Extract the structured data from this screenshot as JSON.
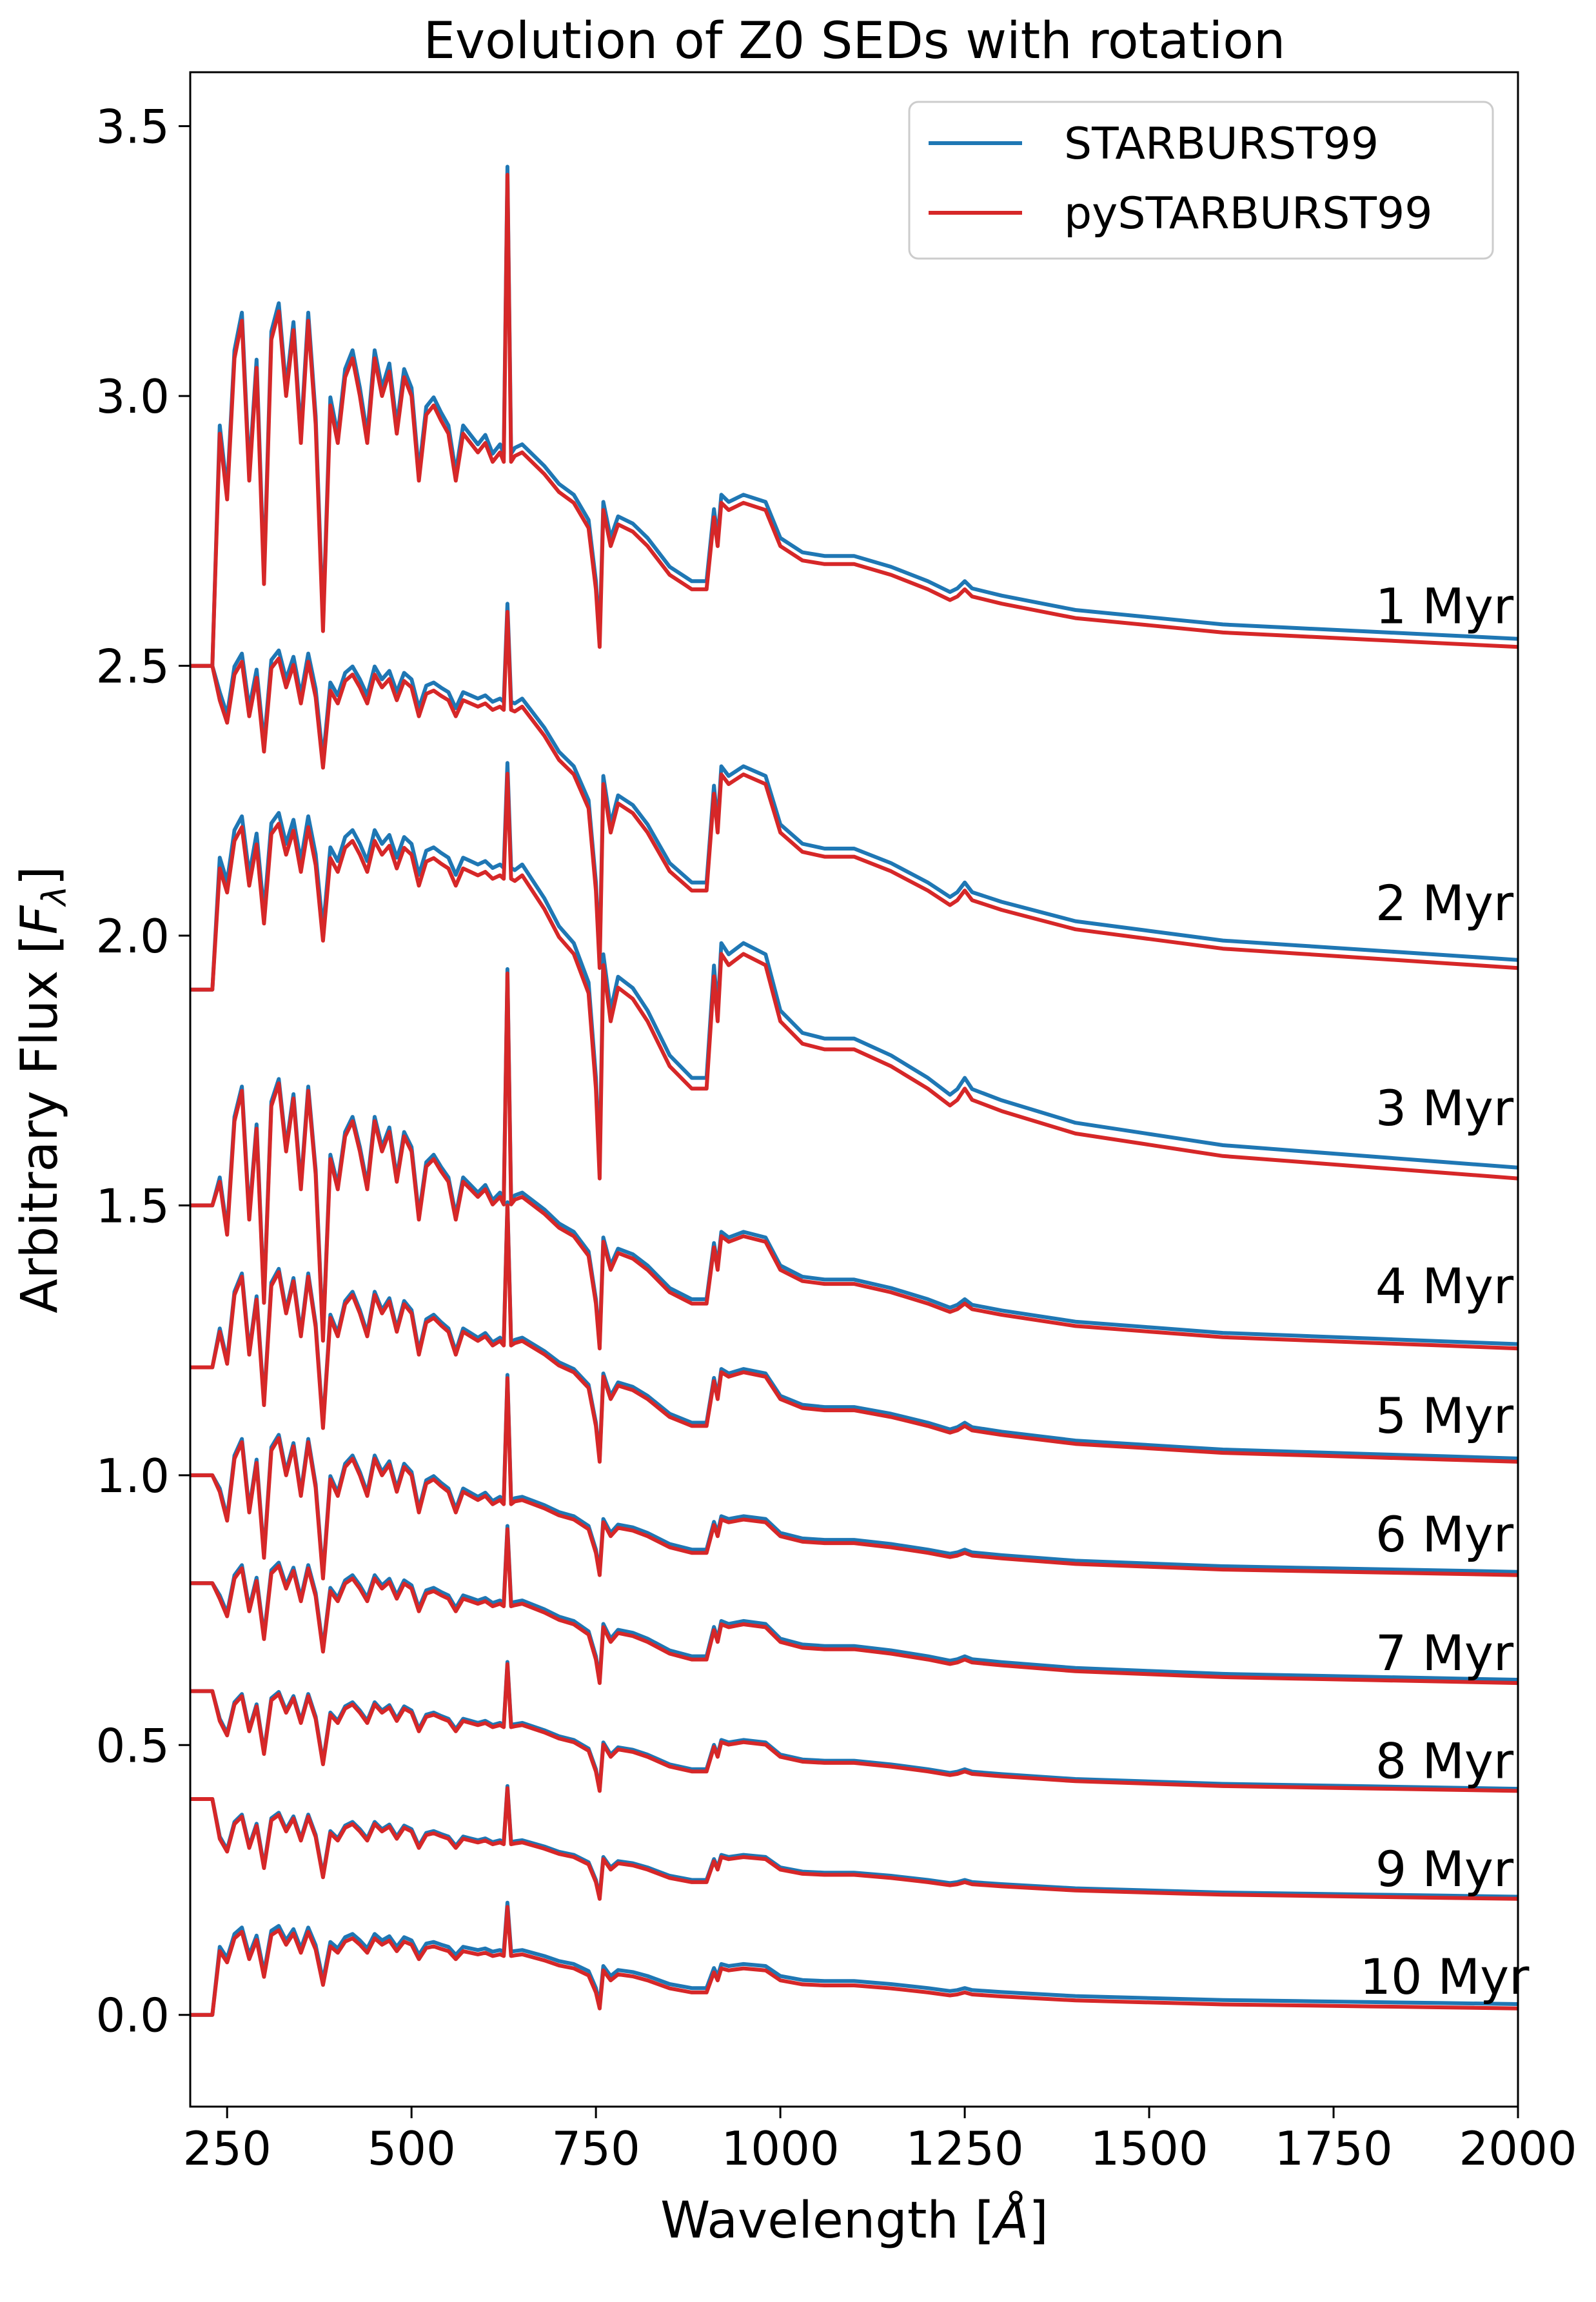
{
  "chart_data": {
    "type": "line",
    "title": "Evolution of Z0 SEDs with rotation",
    "xlabel_prefix": "Wavelength [",
    "xlabel_unit": "Å",
    "xlabel_suffix": "]",
    "ylabel_prefix": "Arbitrary Flux [",
    "ylabel_symbol": "F",
    "ylabel_subscript": "λ",
    "ylabel_suffix": "]",
    "xlim": [
      200,
      2000
    ],
    "ylim": [
      -0.17,
      3.6
    ],
    "xticks": [
      250,
      500,
      750,
      1000,
      1250,
      1500,
      1750,
      2000
    ],
    "xtick_labels": [
      "250",
      "500",
      "750",
      "1000",
      "1250",
      "1500",
      "1750",
      "2000"
    ],
    "yticks": [
      0.0,
      0.5,
      1.0,
      1.5,
      2.0,
      2.5,
      3.0,
      3.5
    ],
    "ytick_labels": [
      "0.0",
      "0.5",
      "1.0",
      "1.5",
      "2.0",
      "2.5",
      "3.0",
      "3.5"
    ],
    "legend": {
      "position": "top-right",
      "entries": [
        {
          "label": "STARBURST99",
          "color": "#1f77b4"
        },
        {
          "label": "pySTARBURST99",
          "color": "#d62728"
        }
      ]
    },
    "series_colors": {
      "STARBURST99": "#1f77b4",
      "pySTARBURST99": "#d62728"
    },
    "age_labels": [
      {
        "text": "1 Myr",
        "y": 2.61
      },
      {
        "text": "2 Myr",
        "y": 2.06
      },
      {
        "text": "3 Myr",
        "y": 1.68
      },
      {
        "text": "4 Myr",
        "y": 1.35
      },
      {
        "text": "5 Myr",
        "y": 1.11
      },
      {
        "text": "6 Myr",
        "y": 0.89
      },
      {
        "text": "7 Myr",
        "y": 0.67
      },
      {
        "text": "8 Myr",
        "y": 0.47
      },
      {
        "text": "9 Myr",
        "y": 0.27
      },
      {
        "text": "10 Myr",
        "y": 0.07
      }
    ],
    "profile_wavelength": [
      200,
      230,
      240,
      250,
      260,
      270,
      280,
      290,
      300,
      310,
      320,
      330,
      340,
      350,
      360,
      370,
      380,
      390,
      400,
      410,
      420,
      430,
      440,
      450,
      460,
      470,
      480,
      490,
      500,
      510,
      520,
      530,
      540,
      550,
      560,
      570,
      580,
      590,
      600,
      610,
      620,
      625,
      630,
      635,
      640,
      650,
      680,
      700,
      720,
      740,
      750,
      755,
      760,
      770,
      780,
      800,
      820,
      850,
      880,
      900,
      910,
      915,
      920,
      930,
      950,
      980,
      1000,
      1030,
      1060,
      1100,
      1150,
      1200,
      1230,
      1240,
      1250,
      1260,
      1300,
      1400,
      1500,
      1550,
      1600,
      1700,
      1800,
      1900,
      2000
    ],
    "profile_shape": [
      0.0,
      0.0,
      0.35,
      0.0,
      0.75,
      0.95,
      0.1,
      0.7,
      -0.45,
      0.85,
      1.0,
      0.55,
      0.9,
      0.3,
      0.95,
      0.4,
      -0.7,
      0.5,
      0.3,
      0.65,
      0.75,
      0.55,
      0.3,
      0.75,
      0.55,
      0.68,
      0.35,
      0.65,
      0.55,
      0.1,
      0.45,
      0.5,
      0.42,
      0.35,
      0.1,
      0.35,
      0.3,
      0.25,
      0.3,
      0.2,
      0.25,
      0.2,
      1.0,
      0.2,
      0.25,
      0.26,
      0.2,
      0.15,
      0.12,
      0.05,
      -0.12,
      -0.3,
      0.1,
      0.0,
      0.06,
      0.04,
      0.0,
      -0.08,
      -0.12,
      -0.12,
      0.08,
      0.0,
      0.12,
      0.1,
      0.12,
      0.1,
      0.0,
      -0.04,
      -0.05,
      -0.05,
      -0.08,
      -0.12,
      -0.15,
      -0.14,
      -0.12,
      -0.14,
      -0.16,
      -0.2,
      -0.22,
      -0.23,
      -0.24,
      -0.25,
      -0.26,
      -0.27,
      -0.28
    ],
    "seds": [
      {
        "age": "1 Myr",
        "baseline": 2.5,
        "uv_level": 3.0,
        "peak": 3.41,
        "end": 2.535,
        "offset": 0.015
      },
      {
        "age": "2 Myr",
        "baseline": 2.5,
        "uv_level": 2.46,
        "peak": 2.6,
        "end": 1.94,
        "offset": 0.015
      },
      {
        "age": "3 Myr",
        "baseline": 1.9,
        "uv_level": 2.15,
        "peak": 2.3,
        "end": 1.55,
        "offset": 0.02
      },
      {
        "age": "4 Myr",
        "baseline": 1.5,
        "uv_level": 1.6,
        "peak": 1.93,
        "end": 1.235,
        "offset": 0.008
      },
      {
        "age": "5 Myr",
        "baseline": 1.2,
        "uv_level": 1.3,
        "peak": 1.5,
        "end": 1.025,
        "offset": 0.006
      },
      {
        "age": "6 Myr",
        "baseline": 1.0,
        "uv_level": 1.0,
        "peak": 1.18,
        "end": 0.815,
        "offset": 0.006
      },
      {
        "age": "7 Myr",
        "baseline": 0.8,
        "uv_level": 0.79,
        "peak": 0.9,
        "end": 0.615,
        "offset": 0.006
      },
      {
        "age": "8 Myr",
        "baseline": 0.6,
        "uv_level": 0.56,
        "peak": 0.65,
        "end": 0.415,
        "offset": 0.004
      },
      {
        "age": "9 Myr",
        "baseline": 0.4,
        "uv_level": 0.34,
        "peak": 0.42,
        "end": 0.215,
        "offset": 0.004
      },
      {
        "age": "10 Myr",
        "baseline": 0.0,
        "uv_level": 0.13,
        "peak": 0.2,
        "end": 0.012,
        "offset": 0.008
      }
    ]
  }
}
